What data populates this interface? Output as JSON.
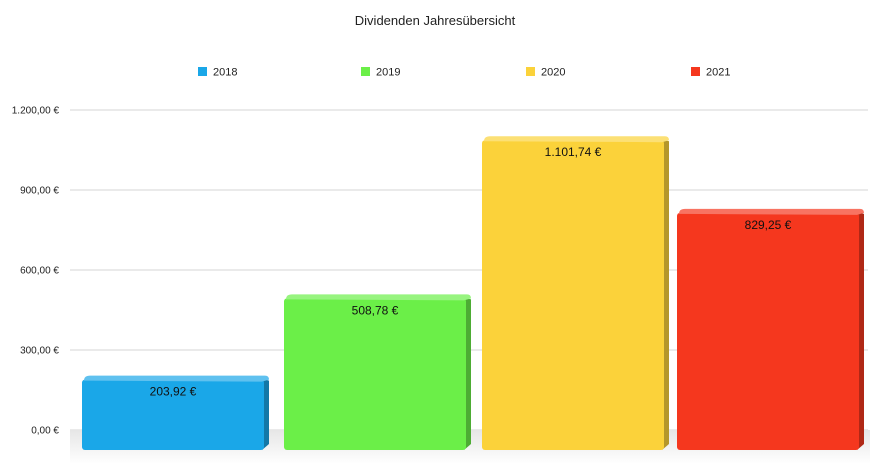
{
  "chart_data": {
    "type": "bar",
    "title": "Dividenden Jahresübersicht",
    "xlabel": "",
    "ylabel": "",
    "categories": [
      "2018",
      "2019",
      "2020",
      "2021"
    ],
    "values": [
      203.92,
      508.78,
      1101.74,
      829.25
    ],
    "data_labels": [
      "203,92 €",
      "508,78 €",
      "1.101,74 €",
      "829,25 €"
    ],
    "colors": [
      "#1aa7e8",
      "#6bef48",
      "#fbd23a",
      "#f5371e"
    ],
    "legend": {
      "placement": "top",
      "entries": [
        "2018",
        "2019",
        "2020",
        "2021"
      ]
    },
    "ylim": [
      0,
      1200
    ],
    "yticks": [
      0,
      300,
      600,
      900,
      1200
    ],
    "ytick_labels": [
      "0,00 €",
      "300,00 €",
      "600,00 €",
      "900,00 €",
      "1.200,00 €"
    ],
    "grid": true
  }
}
